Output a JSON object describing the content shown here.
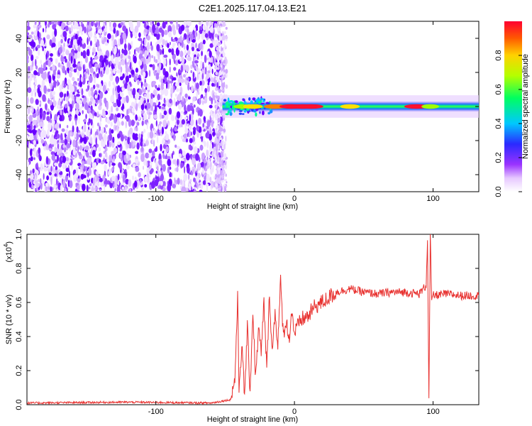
{
  "title": "C2E1.2025.117.04.13.E21",
  "chart_data": [
    {
      "type": "heatmap",
      "xlabel": "Height of straight line (km)",
      "ylabel": "Frequency (Hz)",
      "xlim": [
        -193,
        133
      ],
      "ylim": [
        -50,
        50
      ],
      "xticks": [
        -100,
        0,
        100
      ],
      "yticks": [
        -40,
        -20,
        0,
        20,
        40
      ],
      "colorbar": {
        "label": "Normalized spectral amplitude",
        "range": [
          0,
          1
        ],
        "ticks": [
          "0.0",
          "0.2",
          "0.4",
          "0.6",
          "0.8"
        ],
        "tick_values": [
          0,
          0.2,
          0.4,
          0.6,
          0.8
        ]
      },
      "noise_region_x": [
        -193,
        -51
      ],
      "signal_band": {
        "x_start": -52,
        "x_end": 133,
        "center_freq": 0,
        "half_width_hz": 3,
        "peaks": [
          {
            "x": -38,
            "amplitude": 0.55
          },
          {
            "x": -30,
            "amplitude": 0.7
          },
          {
            "x": -14,
            "amplitude": 0.85
          },
          {
            "x": -2,
            "amplitude": 0.95
          },
          {
            "x": 6,
            "amplitude": 0.95
          },
          {
            "x": 12,
            "amplitude": 0.95
          },
          {
            "x": 40,
            "amplitude": 0.7
          },
          {
            "x": 88,
            "amplitude": 0.95
          },
          {
            "x": 98,
            "amplitude": 0.6
          }
        ]
      }
    },
    {
      "type": "line",
      "xlabel": "Height of straight line (km)",
      "ylabel": "SNR (10 * v/v)",
      "y_multiplier": "(x10",
      "y_multiplier_exp": "4",
      "y_multiplier_close": ")",
      "xlim": [
        -193,
        133
      ],
      "ylim": [
        0,
        1.0
      ],
      "xticks": [
        -100,
        0,
        100
      ],
      "yticks": [
        "0.0",
        "0.2",
        "0.4",
        "0.6",
        "0.8",
        "1.0"
      ],
      "ytick_values": [
        0,
        0.2,
        0.4,
        0.6,
        0.8,
        1.0
      ],
      "series": [
        {
          "color": "#e8302e",
          "x": [
            -193,
            -120,
            -60,
            -46,
            -43,
            -41,
            -40,
            -38,
            -36,
            -34,
            -32,
            -30,
            -28,
            -26,
            -24,
            -22,
            -20,
            -18,
            -16,
            -14,
            -12,
            -10,
            -8,
            -6,
            -4,
            -2,
            0,
            5,
            10,
            15,
            20,
            30,
            40,
            50,
            60,
            70,
            80,
            90,
            95,
            96,
            97,
            98,
            99,
            100,
            110,
            120,
            133
          ],
          "y": [
            0.01,
            0.015,
            0.01,
            0.03,
            0.15,
            0.62,
            0.1,
            0.35,
            0.05,
            0.45,
            0.08,
            0.55,
            0.15,
            0.45,
            0.3,
            0.6,
            0.2,
            0.65,
            0.3,
            0.55,
            0.35,
            0.72,
            0.4,
            0.5,
            0.38,
            0.55,
            0.42,
            0.5,
            0.52,
            0.58,
            0.6,
            0.66,
            0.68,
            0.66,
            0.65,
            0.66,
            0.66,
            0.65,
            0.7,
            0.98,
            0.02,
            1.0,
            0.6,
            0.64,
            0.65,
            0.64,
            0.64
          ]
        }
      ]
    }
  ]
}
